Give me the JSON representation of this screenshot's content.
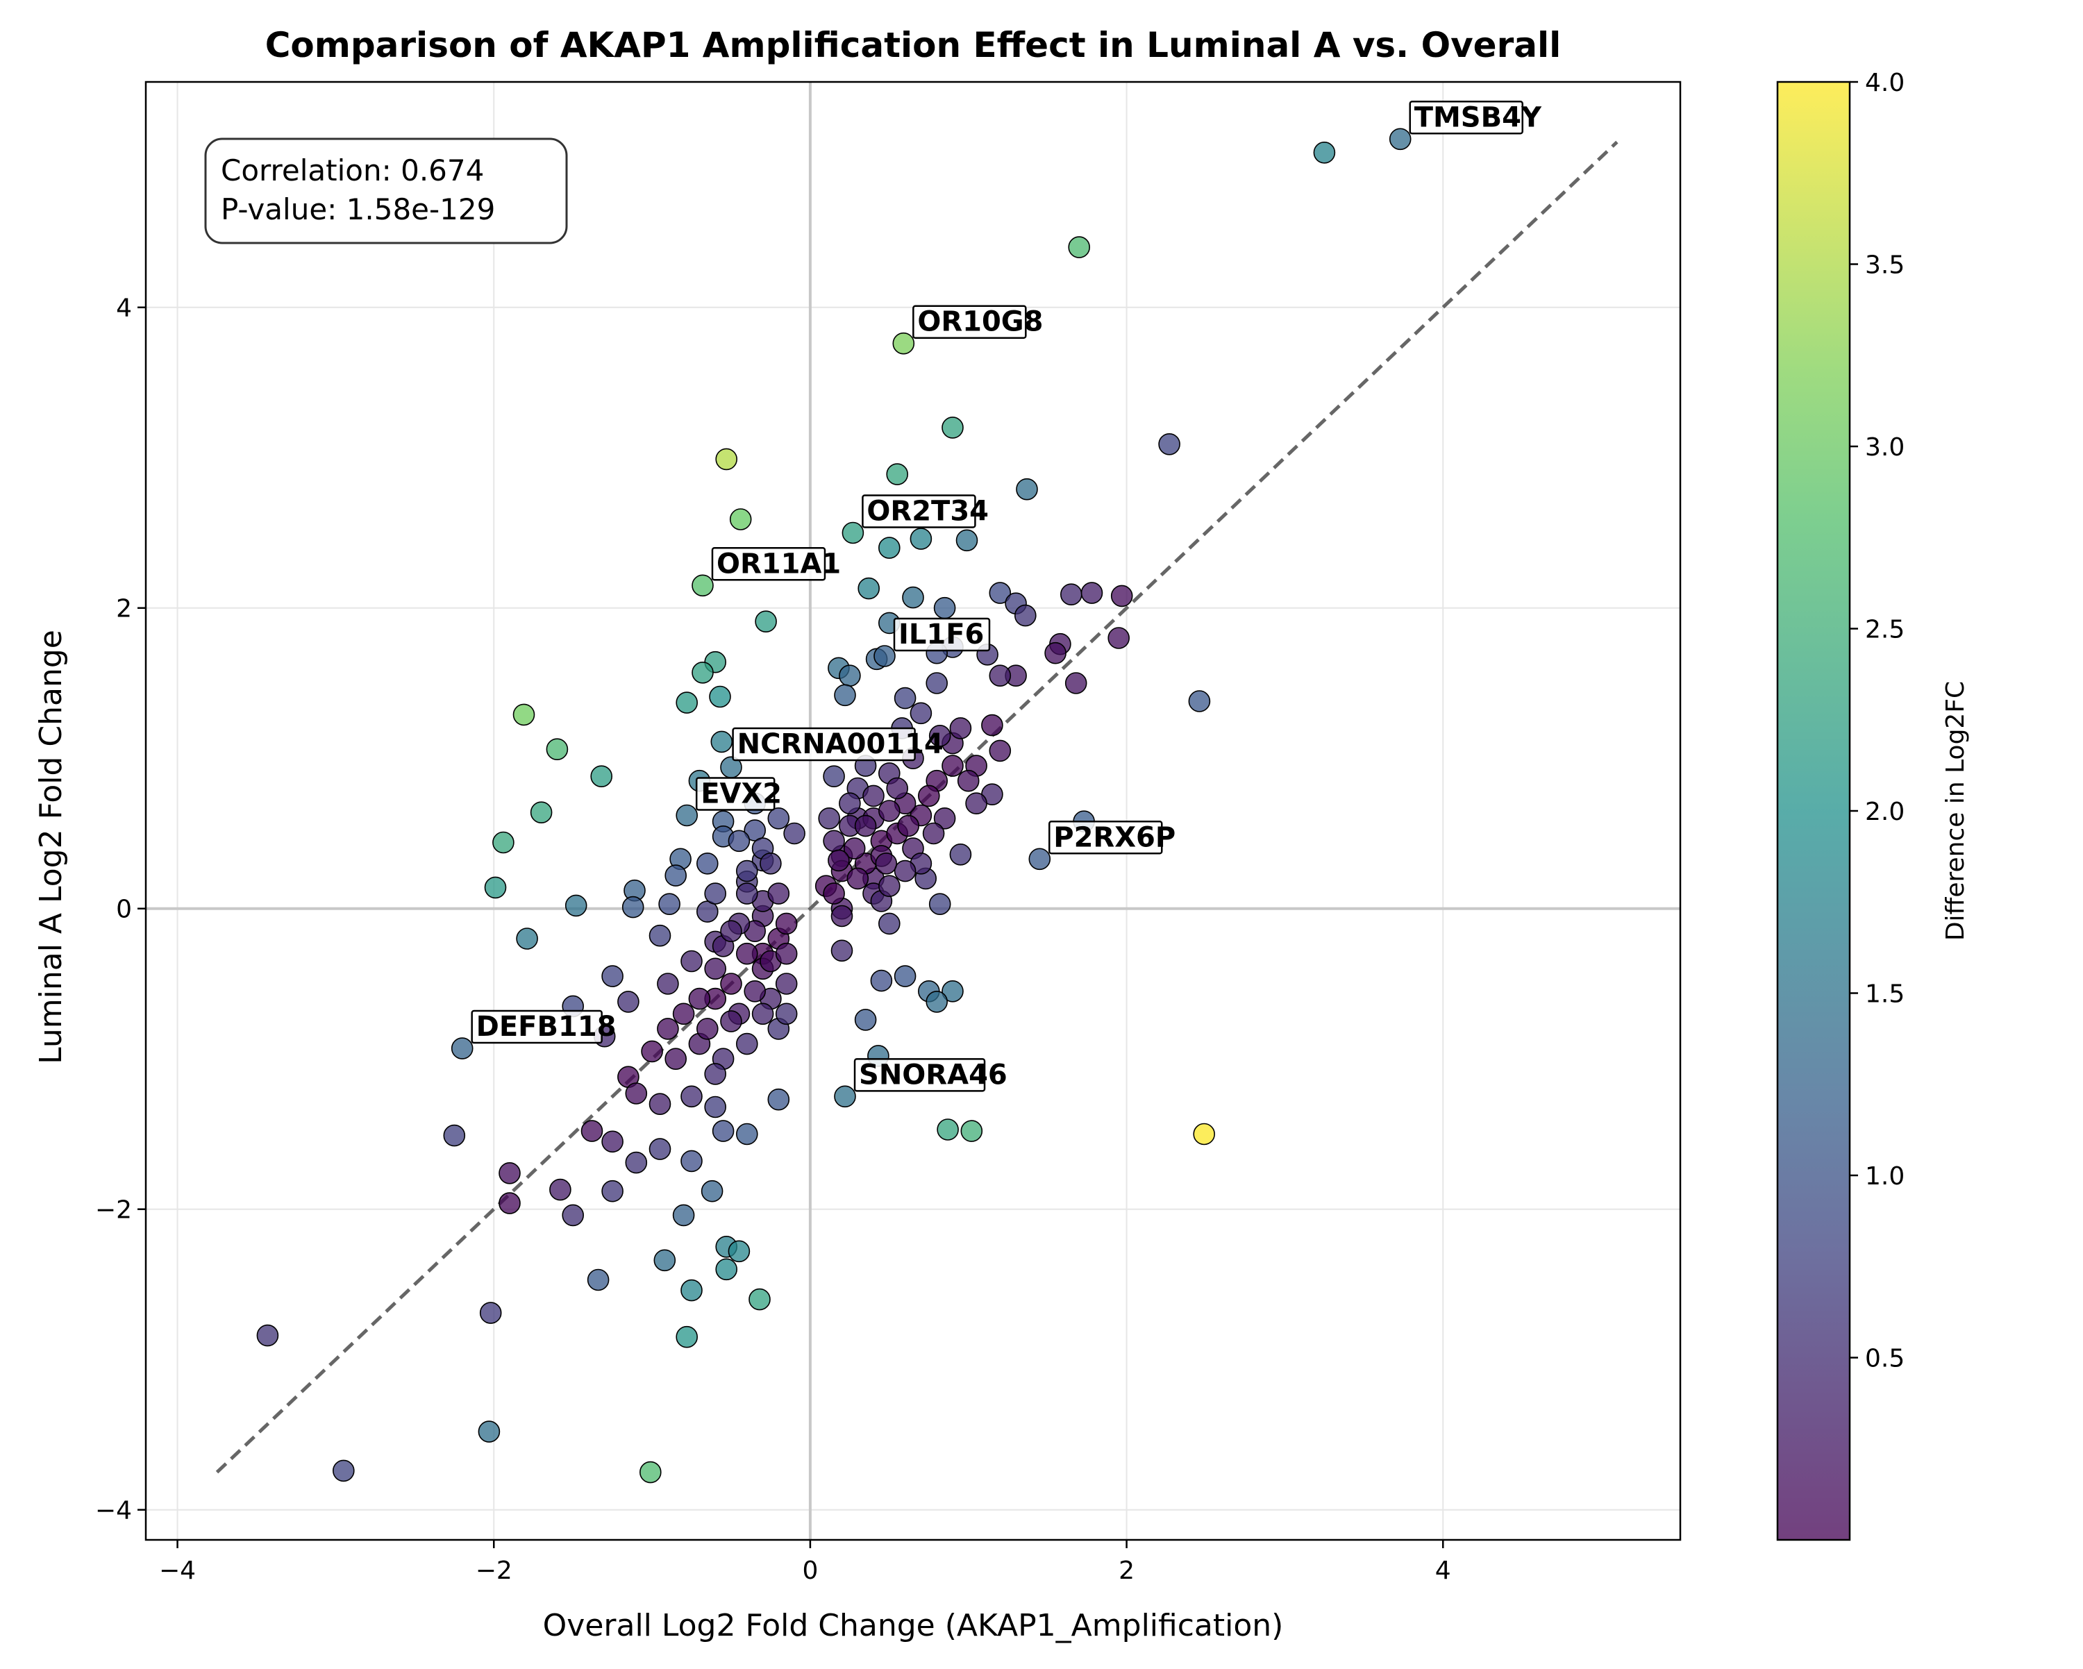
{
  "chart_data": {
    "type": "scatter",
    "title": "Comparison of AKAP1 Amplification Effect in Luminal A vs. Overall",
    "xlabel": "Overall Log2 Fold Change (AKAP1_Amplification)",
    "ylabel": "Luminal A Log2 Fold Change",
    "xlim": [
      -4.2,
      5.5
    ],
    "ylim": [
      -4.2,
      5.5
    ],
    "xticks": [
      -4,
      -2,
      0,
      2,
      4
    ],
    "yticks": [
      -4,
      -2,
      0,
      2,
      4
    ],
    "xtick_labels": [
      "−4",
      "−2",
      "0",
      "2",
      "4"
    ],
    "ytick_labels": [
      "−4",
      "−2",
      "0",
      "2",
      "4"
    ],
    "grid": true,
    "reference_line": {
      "style": "dashed",
      "from": [
        -3.75,
        -3.75
      ],
      "to": [
        5.1,
        5.1
      ]
    },
    "stats_box": {
      "line1": "Correlation: 0.674",
      "line2": "P-value: 1.58e-129",
      "placement": "top-left"
    },
    "colorbar": {
      "label": "Difference in Log2FC",
      "colormap": "viridis",
      "range": [
        0.0,
        4.0
      ],
      "ticks": [
        0.5,
        1.0,
        1.5,
        2.0,
        2.5,
        3.0,
        3.5,
        4.0
      ],
      "tick_labels": [
        "0.5",
        "1.0",
        "1.5",
        "2.0",
        "2.5",
        "3.0",
        "3.5",
        "4.0"
      ]
    },
    "annotated_genes": [
      {
        "gene": "TMSB4Y",
        "x": 3.73,
        "y": 5.12
      },
      {
        "gene": "OR10G8",
        "x": 0.59,
        "y": 3.76
      },
      {
        "gene": "OR2T34",
        "x": 0.27,
        "y": 2.5
      },
      {
        "gene": "OR11A1",
        "x": -0.68,
        "y": 2.15
      },
      {
        "gene": "IL1F6",
        "x": 0.47,
        "y": 1.68
      },
      {
        "gene": "NCRNA00114",
        "x": -0.55,
        "y": 0.95
      },
      {
        "gene": "EVX2",
        "x": -0.78,
        "y": 0.62
      },
      {
        "gene": "P2RX6P",
        "x": 1.45,
        "y": 0.33
      },
      {
        "gene": "DEFB118",
        "x": -2.2,
        "y": -0.93
      },
      {
        "gene": "SNORA46",
        "x": 0.22,
        "y": -1.25
      }
    ],
    "points": [
      [
        3.73,
        5.12
      ],
      [
        3.25,
        5.03
      ],
      [
        1.7,
        4.4
      ],
      [
        0.59,
        3.76
      ],
      [
        0.9,
        3.2
      ],
      [
        2.27,
        3.09
      ],
      [
        -0.53,
        2.99
      ],
      [
        0.55,
        2.89
      ],
      [
        1.37,
        2.79
      ],
      [
        -0.44,
        2.59
      ],
      [
        0.27,
        2.5
      ],
      [
        0.7,
        2.46
      ],
      [
        0.99,
        2.45
      ],
      [
        0.5,
        2.4
      ],
      [
        -0.68,
        2.15
      ],
      [
        0.37,
        2.13
      ],
      [
        0.65,
        2.07
      ],
      [
        1.2,
        2.1
      ],
      [
        1.3,
        2.03
      ],
      [
        1.65,
        2.09
      ],
      [
        1.78,
        2.1
      ],
      [
        1.97,
        2.08
      ],
      [
        -0.28,
        1.91
      ],
      [
        0.85,
        2.0
      ],
      [
        1.36,
        1.95
      ],
      [
        0.5,
        1.9
      ],
      [
        1.58,
        1.76
      ],
      [
        1.95,
        1.8
      ],
      [
        1.55,
        1.7
      ],
      [
        1.68,
        1.5
      ],
      [
        1.12,
        1.69
      ],
      [
        0.9,
        1.74
      ],
      [
        0.42,
        1.66
      ],
      [
        0.8,
        1.7
      ],
      [
        0.47,
        1.68
      ],
      [
        -0.6,
        1.64
      ],
      [
        -0.68,
        1.57
      ],
      [
        0.18,
        1.6
      ],
      [
        0.25,
        1.55
      ],
      [
        2.46,
        1.38
      ],
      [
        -1.81,
        1.29
      ],
      [
        -0.57,
        1.41
      ],
      [
        -0.78,
        1.37
      ],
      [
        0.22,
        1.42
      ],
      [
        0.6,
        1.4
      ],
      [
        0.8,
        1.5
      ],
      [
        1.3,
        1.55
      ],
      [
        1.2,
        1.55
      ],
      [
        1.15,
        1.22
      ],
      [
        1.2,
        1.05
      ],
      [
        -1.6,
        1.06
      ],
      [
        -0.56,
        1.11
      ],
      [
        -1.32,
        0.88
      ],
      [
        -0.7,
        0.85
      ],
      [
        -0.5,
        0.94
      ],
      [
        0.15,
        0.88
      ],
      [
        0.35,
        0.95
      ],
      [
        0.5,
        0.9
      ],
      [
        0.9,
        1.1
      ],
      [
        1.05,
        0.95
      ],
      [
        1.15,
        0.76
      ],
      [
        -1.7,
        0.64
      ],
      [
        -0.78,
        0.62
      ],
      [
        -0.55,
        0.58
      ],
      [
        -0.35,
        0.52
      ],
      [
        -0.1,
        0.5
      ],
      [
        0.3,
        0.6
      ],
      [
        0.7,
        0.62
      ],
      [
        1.73,
        0.58
      ],
      [
        1.45,
        0.33
      ],
      [
        -1.94,
        0.44
      ],
      [
        -0.82,
        0.33
      ],
      [
        -0.55,
        0.48
      ],
      [
        -0.3,
        0.32
      ],
      [
        0.95,
        0.36
      ],
      [
        0.2,
        0.35
      ],
      [
        0.45,
        0.45
      ],
      [
        -1.99,
        0.14
      ],
      [
        -1.11,
        0.12
      ],
      [
        -0.85,
        0.22
      ],
      [
        -0.4,
        0.18
      ],
      [
        0.1,
        0.15
      ],
      [
        0.4,
        0.2
      ],
      [
        0.73,
        0.2
      ],
      [
        -1.48,
        0.02
      ],
      [
        -1.12,
        0.01
      ],
      [
        -0.89,
        0.03
      ],
      [
        -0.65,
        -0.02
      ],
      [
        -0.3,
        -0.05
      ],
      [
        0.2,
        0.0
      ],
      [
        0.5,
        -0.1
      ],
      [
        0.82,
        0.03
      ],
      [
        -1.79,
        -0.2
      ],
      [
        -0.95,
        -0.18
      ],
      [
        -0.6,
        -0.22
      ],
      [
        -0.3,
        -0.3
      ],
      [
        0.2,
        -0.28
      ],
      [
        0.45,
        -0.48
      ],
      [
        0.6,
        -0.45
      ],
      [
        -1.5,
        -0.65
      ],
      [
        -1.25,
        -0.45
      ],
      [
        -1.15,
        -0.62
      ],
      [
        -0.9,
        -0.5
      ],
      [
        -0.6,
        -0.6
      ],
      [
        0.75,
        -0.55
      ],
      [
        0.9,
        -0.55
      ],
      [
        0.8,
        -0.62
      ],
      [
        -1.3,
        -0.85
      ],
      [
        -1.0,
        -0.95
      ],
      [
        -0.7,
        -0.9
      ],
      [
        -2.2,
        -0.93
      ],
      [
        0.35,
        -0.74
      ],
      [
        0.43,
        -0.98
      ],
      [
        -1.15,
        -1.12
      ],
      [
        -1.1,
        -1.23
      ],
      [
        -0.95,
        -1.3
      ],
      [
        -0.75,
        -1.25
      ],
      [
        -0.6,
        -1.32
      ],
      [
        -0.2,
        -1.27
      ],
      [
        0.22,
        -1.25
      ],
      [
        0.87,
        -1.47
      ],
      [
        1.02,
        -1.48
      ],
      [
        2.49,
        -1.5
      ],
      [
        -2.25,
        -1.51
      ],
      [
        -1.38,
        -1.48
      ],
      [
        -1.25,
        -1.55
      ],
      [
        -0.95,
        -1.6
      ],
      [
        -0.55,
        -1.48
      ],
      [
        -0.4,
        -1.5
      ],
      [
        -1.9,
        -1.76
      ],
      [
        -1.1,
        -1.69
      ],
      [
        -0.75,
        -1.68
      ],
      [
        -1.9,
        -1.96
      ],
      [
        -1.58,
        -1.87
      ],
      [
        -1.25,
        -1.88
      ],
      [
        -1.5,
        -2.04
      ],
      [
        -0.8,
        -2.04
      ],
      [
        -0.62,
        -1.88
      ],
      [
        -0.92,
        -2.34
      ],
      [
        -0.53,
        -2.25
      ],
      [
        -0.45,
        -2.28
      ],
      [
        -0.53,
        -2.4
      ],
      [
        -1.34,
        -2.47
      ],
      [
        -0.75,
        -2.54
      ],
      [
        -0.32,
        -2.6
      ],
      [
        -2.02,
        -2.69
      ],
      [
        -3.43,
        -2.84
      ],
      [
        -0.78,
        -2.85
      ],
      [
        -2.03,
        -3.48
      ],
      [
        -2.95,
        -3.74
      ],
      [
        -1.01,
        -3.75
      ],
      [
        0.25,
        0.55
      ],
      [
        0.4,
        0.6
      ],
      [
        0.55,
        0.5
      ],
      [
        0.35,
        0.3
      ],
      [
        0.15,
        0.45
      ],
      [
        0.6,
        0.7
      ],
      [
        0.3,
        0.8
      ],
      [
        0.45,
        0.35
      ],
      [
        0.2,
        0.25
      ],
      [
        0.65,
        0.4
      ],
      [
        0.5,
        0.65
      ],
      [
        0.3,
        0.2
      ],
      [
        0.7,
        0.3
      ],
      [
        0.12,
        0.6
      ],
      [
        0.8,
        0.85
      ],
      [
        0.55,
        0.8
      ],
      [
        0.25,
        0.7
      ],
      [
        0.6,
        0.25
      ],
      [
        0.4,
        0.1
      ],
      [
        0.15,
        0.1
      ],
      [
        0.75,
        0.75
      ],
      [
        0.9,
        0.95
      ],
      [
        0.65,
        1.0
      ],
      [
        1.0,
        0.85
      ],
      [
        0.45,
        0.05
      ],
      [
        0.2,
        -0.05
      ],
      [
        0.85,
        0.6
      ],
      [
        0.5,
        0.15
      ],
      [
        0.35,
        0.55
      ],
      [
        0.28,
        0.4
      ],
      [
        0.48,
        0.3
      ],
      [
        0.62,
        0.55
      ],
      [
        0.18,
        0.32
      ],
      [
        0.78,
        0.5
      ],
      [
        1.05,
        0.7
      ],
      [
        0.95,
        1.2
      ],
      [
        0.7,
        1.3
      ],
      [
        0.82,
        1.15
      ],
      [
        0.58,
        1.2
      ],
      [
        0.4,
        0.75
      ],
      [
        -0.2,
        -0.2
      ],
      [
        -0.3,
        -0.4
      ],
      [
        -0.4,
        -0.3
      ],
      [
        -0.25,
        -0.6
      ],
      [
        -0.5,
        -0.5
      ],
      [
        -0.15,
        -0.1
      ],
      [
        -0.35,
        -0.15
      ],
      [
        -0.45,
        -0.7
      ],
      [
        -0.6,
        -0.4
      ],
      [
        -0.2,
        -0.8
      ],
      [
        -0.3,
        0.05
      ],
      [
        -0.55,
        -0.25
      ],
      [
        -0.7,
        -0.6
      ],
      [
        -0.4,
        -0.9
      ],
      [
        -0.25,
        -0.35
      ],
      [
        -0.15,
        -0.5
      ],
      [
        -0.5,
        -0.75
      ],
      [
        -0.35,
        -0.55
      ],
      [
        -0.65,
        -0.8
      ],
      [
        -0.8,
        -0.7
      ],
      [
        -0.2,
        0.1
      ],
      [
        -0.4,
        0.25
      ],
      [
        -0.3,
        0.4
      ],
      [
        -0.6,
        0.1
      ],
      [
        -0.15,
        -0.3
      ],
      [
        -0.45,
        -0.1
      ],
      [
        -0.55,
        -1.0
      ],
      [
        -0.85,
        -1.0
      ],
      [
        -0.75,
        -0.35
      ],
      [
        -0.25,
        0.3
      ],
      [
        -0.35,
        0.7
      ],
      [
        -0.2,
        0.6
      ],
      [
        -0.45,
        0.45
      ],
      [
        -0.65,
        0.3
      ],
      [
        -0.5,
        -0.15
      ],
      [
        -0.3,
        -0.7
      ],
      [
        -0.15,
        -0.7
      ],
      [
        -0.6,
        -1.1
      ],
      [
        -0.9,
        -0.8
      ],
      [
        -0.4,
        0.1
      ]
    ]
  }
}
